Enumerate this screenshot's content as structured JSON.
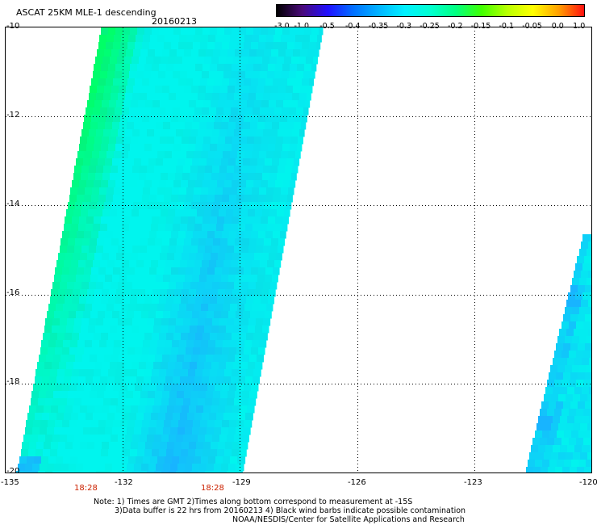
{
  "header": {
    "title": "ASCAT 25KM MLE-1 descending",
    "date": "20160213"
  },
  "colorbar": {
    "labels": [
      "-3.0",
      "-1.0",
      "-0.5",
      "-0.4",
      "-0.35",
      "-0.3",
      "-0.25",
      "-0.2",
      "-0.15",
      "-0.1",
      "-0.05",
      "0.0",
      "1.0"
    ],
    "colors": [
      "#000000",
      "#4a0a7a",
      "#2010ff",
      "#0070ff",
      "#00b4ff",
      "#00f0ff",
      "#00ffd0",
      "#00ff80",
      "#40ff00",
      "#b8ff00",
      "#ffff00",
      "#ffa000",
      "#ff1010"
    ]
  },
  "map": {
    "lat_labels": [
      "-10",
      "-12",
      "-14",
      "-16",
      "-18",
      "-20"
    ],
    "lon_labels": [
      "-135",
      "-132",
      "-129",
      "-126",
      "-123",
      "-120"
    ],
    "lat_range": [
      -20,
      -10
    ],
    "lon_range": [
      -135,
      -120
    ],
    "colors": {
      "swath_base": "#00f5ee",
      "swath_green": "#00ff66",
      "swath_blue": "#18b4ff",
      "grid": "#000000"
    }
  },
  "times": [
    "18:28",
    "18:28"
  ],
  "notes": {
    "line1": "Note: 1) Times are GMT 2)Times along bottom correspond to measurement at -15S",
    "line2": "3)Data buffer is 22 hrs from 20160213 4) Black wind barbs indicate possible contamination",
    "line3": "NOAA/NESDIS/Center for Satellite Applications and Research"
  }
}
